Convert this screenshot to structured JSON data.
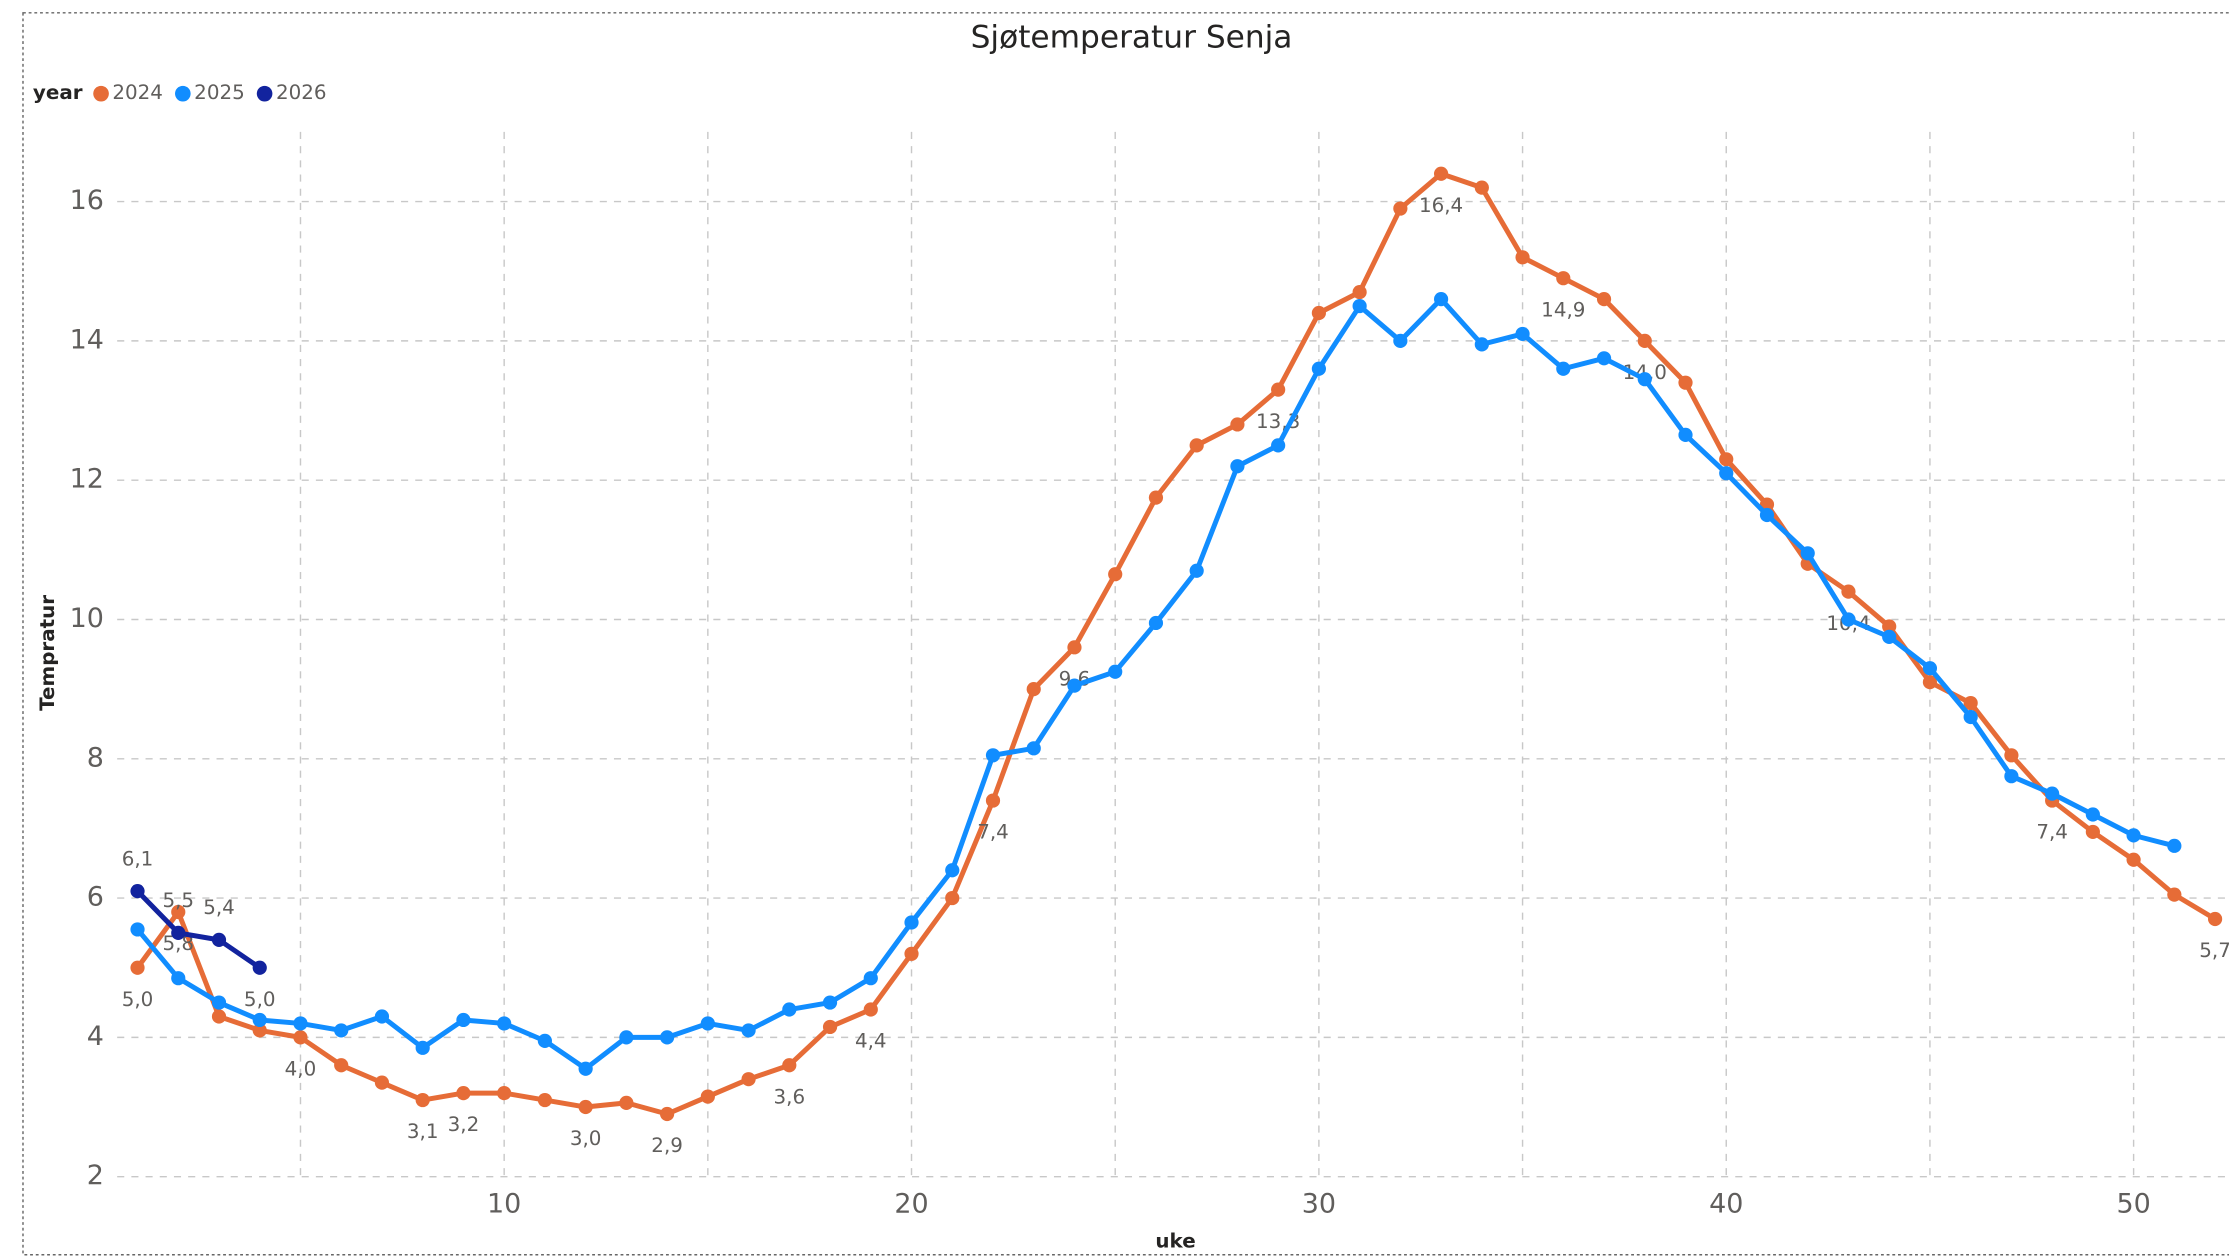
{
  "chart_data": {
    "type": "line",
    "title": "Sjøtemperatur Senja",
    "x_label": "uke",
    "y_label": "Tempratur",
    "legend_title": "year",
    "x": [
      1,
      2,
      3,
      4,
      5,
      6,
      7,
      8,
      9,
      10,
      11,
      12,
      13,
      14,
      15,
      16,
      17,
      18,
      19,
      20,
      21,
      22,
      23,
      24,
      25,
      26,
      27,
      28,
      29,
      30,
      31,
      32,
      33,
      34,
      35,
      36,
      37,
      38,
      39,
      40,
      41,
      42,
      43,
      44,
      45,
      46,
      47,
      48,
      49,
      50,
      51,
      52
    ],
    "xlim": [
      0.5,
      52.3
    ],
    "xticks": [
      10,
      20,
      30,
      40,
      50
    ],
    "xminorticks": [
      5,
      15,
      25,
      35,
      45
    ],
    "ylim": [
      2,
      17
    ],
    "yticks": [
      2,
      4,
      6,
      8,
      10,
      12,
      14,
      16
    ],
    "grid": true,
    "series": [
      {
        "name": "2024",
        "color": "#e66c37",
        "values": [
          5.0,
          5.8,
          4.3,
          4.1,
          4.0,
          3.6,
          3.35,
          3.1,
          3.2,
          3.2,
          3.1,
          3.0,
          3.06,
          2.9,
          3.15,
          3.4,
          3.6,
          4.15,
          4.4,
          5.2,
          6.0,
          7.4,
          9.0,
          9.6,
          10.65,
          11.75,
          12.5,
          12.8,
          13.3,
          14.4,
          14.7,
          15.9,
          16.4,
          16.2,
          15.2,
          14.9,
          14.6,
          14.0,
          13.4,
          12.3,
          11.65,
          10.8,
          10.4,
          9.9,
          9.1,
          8.8,
          8.05,
          7.4,
          6.95,
          6.55,
          6.05,
          5.7
        ],
        "value_labels": [
          "5,0",
          "5,8",
          null,
          null,
          "4,0",
          null,
          null,
          "3,1",
          "3,2",
          null,
          null,
          "3,0",
          null,
          "2,9",
          null,
          null,
          "3,6",
          null,
          "4,4",
          null,
          null,
          "7,4",
          null,
          "9,6",
          null,
          null,
          null,
          null,
          "13,3",
          null,
          null,
          null,
          "16,4",
          null,
          null,
          "14,9",
          null,
          "14,0",
          null,
          null,
          null,
          null,
          "10,4",
          null,
          null,
          null,
          null,
          "7,4",
          null,
          null,
          null,
          "5,7"
        ]
      },
      {
        "name": "2025",
        "color": "#118dff",
        "values": [
          5.55,
          4.85,
          4.5,
          4.25,
          4.2,
          4.1,
          4.3,
          3.85,
          4.25,
          4.2,
          3.95,
          3.55,
          4.0,
          4.0,
          4.2,
          4.1,
          4.4,
          4.5,
          4.85,
          5.65,
          6.4,
          8.05,
          8.15,
          9.05,
          9.25,
          9.95,
          10.7,
          12.2,
          12.5,
          13.6,
          14.5,
          14.0,
          14.6,
          13.95,
          14.1,
          13.6,
          13.75,
          13.45,
          12.65,
          12.1,
          11.5,
          10.95,
          10.0,
          9.75,
          9.3,
          8.6,
          7.75,
          7.5,
          7.2,
          6.9,
          6.75,
          null
        ]
      },
      {
        "name": "2026",
        "color": "#12239e",
        "values": [
          6.1,
          5.5,
          5.4,
          5.0,
          null,
          null,
          null,
          null,
          null,
          null,
          null,
          null,
          null,
          null,
          null,
          null,
          null,
          null,
          null,
          null,
          null,
          null,
          null,
          null,
          null,
          null,
          null,
          null,
          null,
          null,
          null,
          null,
          null,
          null,
          null,
          null,
          null,
          null,
          null,
          null,
          null,
          null,
          null,
          null,
          null,
          null,
          null,
          null,
          null,
          null,
          null,
          null
        ],
        "value_labels": [
          "6,1",
          "5,5",
          "5,4",
          "5,0",
          null,
          null,
          null,
          null,
          null,
          null,
          null,
          null,
          null,
          null,
          null,
          null,
          null,
          null,
          null,
          null,
          null,
          null,
          null,
          null,
          null,
          null,
          null,
          null,
          null,
          null,
          null,
          null,
          null,
          null,
          null,
          null,
          null,
          null,
          null,
          null,
          null,
          null,
          null,
          null,
          null,
          null,
          null,
          null,
          null,
          null,
          null,
          null
        ]
      }
    ]
  }
}
